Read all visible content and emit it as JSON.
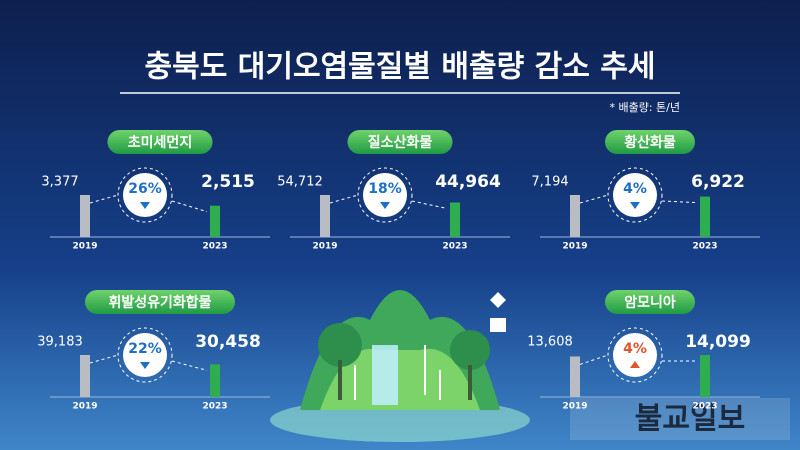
{
  "title": "충북도 대기오염물질별 배출량 감소 추세",
  "note": "* 배출량: 톤/년",
  "watermark": "불교일보",
  "chart_data": [
    {
      "type": "bar",
      "title": "초미세먼지",
      "categories": [
        "2019",
        "2023"
      ],
      "values": [
        3377,
        2515
      ],
      "value_labels": [
        "3,377",
        "2,515"
      ],
      "colors": [
        "#b9bcc2",
        "#2fae4f"
      ],
      "annotation": "26%",
      "annotation_color": "#1f6fc4"
    },
    {
      "type": "bar",
      "title": "질소산화물",
      "categories": [
        "2019",
        "2023"
      ],
      "values": [
        54712,
        44964
      ],
      "value_labels": [
        "54,712",
        "44,964"
      ],
      "colors": [
        "#b9bcc2",
        "#2fae4f"
      ],
      "annotation": "18%",
      "annotation_color": "#1f6fc4"
    },
    {
      "type": "bar",
      "title": "황산화물",
      "categories": [
        "2019",
        "2023"
      ],
      "values": [
        7194,
        6922
      ],
      "value_labels": [
        "7,194",
        "6,922"
      ],
      "colors": [
        "#b9bcc2",
        "#2fae4f"
      ],
      "annotation": "4%",
      "annotation_color": "#1f6fc4"
    },
    {
      "type": "bar",
      "title": "휘발성유기화합물",
      "categories": [
        "2019",
        "2023"
      ],
      "values": [
        39183,
        30458
      ],
      "value_labels": [
        "39,183",
        "30,458"
      ],
      "colors": [
        "#b9bcc2",
        "#2fae4f"
      ],
      "annotation": "22%",
      "annotation_color": "#1f6fc4"
    },
    {
      "type": "bar",
      "title": "암모니아",
      "categories": [
        "2019",
        "2023"
      ],
      "values": [
        13608,
        14099
      ],
      "value_labels": [
        "13,608",
        "14,099"
      ],
      "colors": [
        "#b9bcc2",
        "#2fae4f"
      ],
      "annotation": "4%",
      "annotation_color": "#e0542e"
    }
  ]
}
